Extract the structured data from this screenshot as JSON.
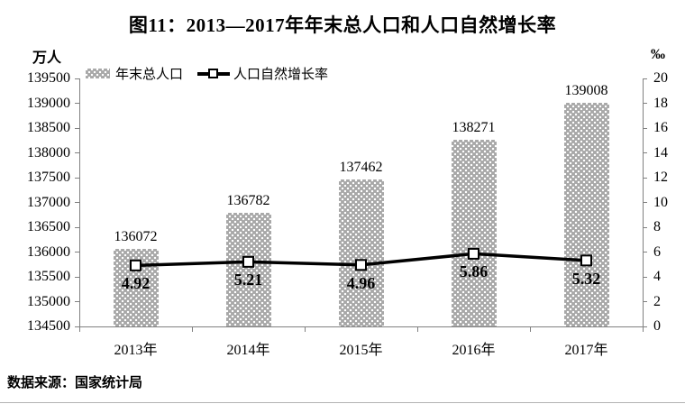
{
  "title": "图11：2013—2017年年末总人口和人口自然增长率",
  "source": "数据来源：国家统计局",
  "legend": {
    "bar_label": "年末总人口",
    "line_label": "人口自然增长率"
  },
  "chart_data": {
    "type": "bar+line combo",
    "title": "图11：2013—2017年年末总人口和人口自然增长率",
    "categories": [
      "2013年",
      "2014年",
      "2015年",
      "2016年",
      "2017年"
    ],
    "series": [
      {
        "name": "年末总人口",
        "type": "bar",
        "axis": "left",
        "values": [
          136072,
          136782,
          137462,
          138271,
          139008
        ]
      },
      {
        "name": "人口自然增长率",
        "type": "line",
        "axis": "right",
        "values": [
          4.92,
          5.21,
          4.96,
          5.86,
          5.32
        ]
      }
    ],
    "left_axis": {
      "unit": "万人",
      "min": 134500,
      "max": 139500,
      "step": 500
    },
    "right_axis": {
      "unit": "‰",
      "min": 0,
      "max": 20,
      "step": 2
    },
    "legend_position": "top-left inside plot",
    "grid": false,
    "colors": {
      "bar_fill": "#a8a8a8",
      "bar_dots": "#ffffff",
      "line": "#000000",
      "marker_fill": "#ffffff",
      "marker_stroke": "#000000",
      "axis": "#808080",
      "text": "#000000"
    }
  }
}
